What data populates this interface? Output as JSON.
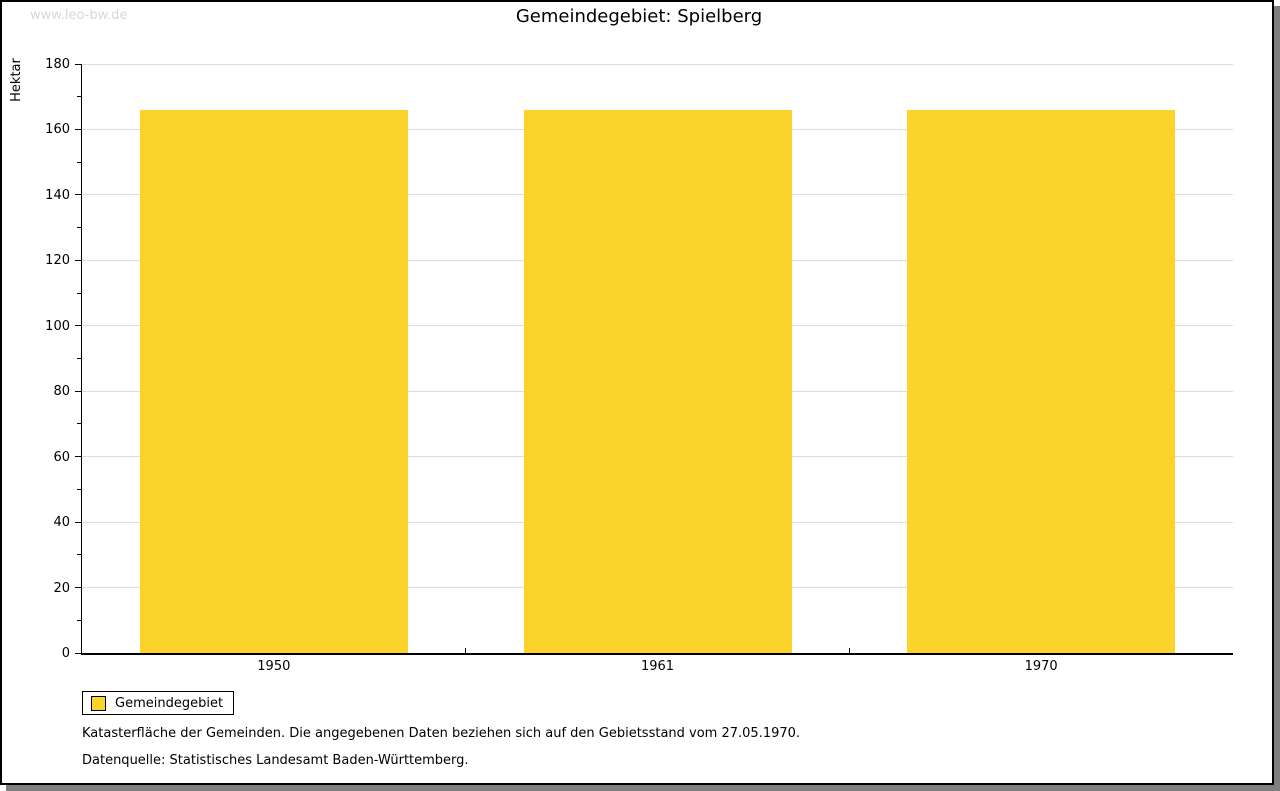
{
  "watermark": "www.leo-bw.de",
  "title": "Gemeindegebiet: Spielberg",
  "legend": {
    "label": "Gemeindegebiet",
    "swatch_color": "#fcd32b"
  },
  "footer": {
    "line1": "Katasterfläche der Gemeinden. Die angegebenen Daten beziehen sich auf den Gebietsstand vom 27.05.1970.",
    "line2": "Datenquelle: Statistisches Landesamt Baden-Württemberg."
  },
  "chart_data": {
    "type": "bar",
    "title": "Gemeindegebiet: Spielberg",
    "categories": [
      "1950",
      "1961",
      "1970"
    ],
    "series": [
      {
        "name": "Gemeindegebiet",
        "values": [
          166,
          166,
          166
        ],
        "color": "#fcd32b"
      }
    ],
    "xlabel": "",
    "ylabel": "Hektar",
    "ylim": [
      0,
      180
    ],
    "yticks": [
      0,
      20,
      40,
      60,
      80,
      100,
      120,
      140,
      160,
      180
    ],
    "minor_tick_step": 10,
    "grid": true,
    "legend_position": "bottom-left"
  },
  "colors": {
    "bar": "#fcd32b",
    "grid": "#dcdcdc",
    "axis": "#000000",
    "watermark": "#d8d8d8",
    "shadow": "#7f7f7f",
    "frame": "#000000"
  }
}
